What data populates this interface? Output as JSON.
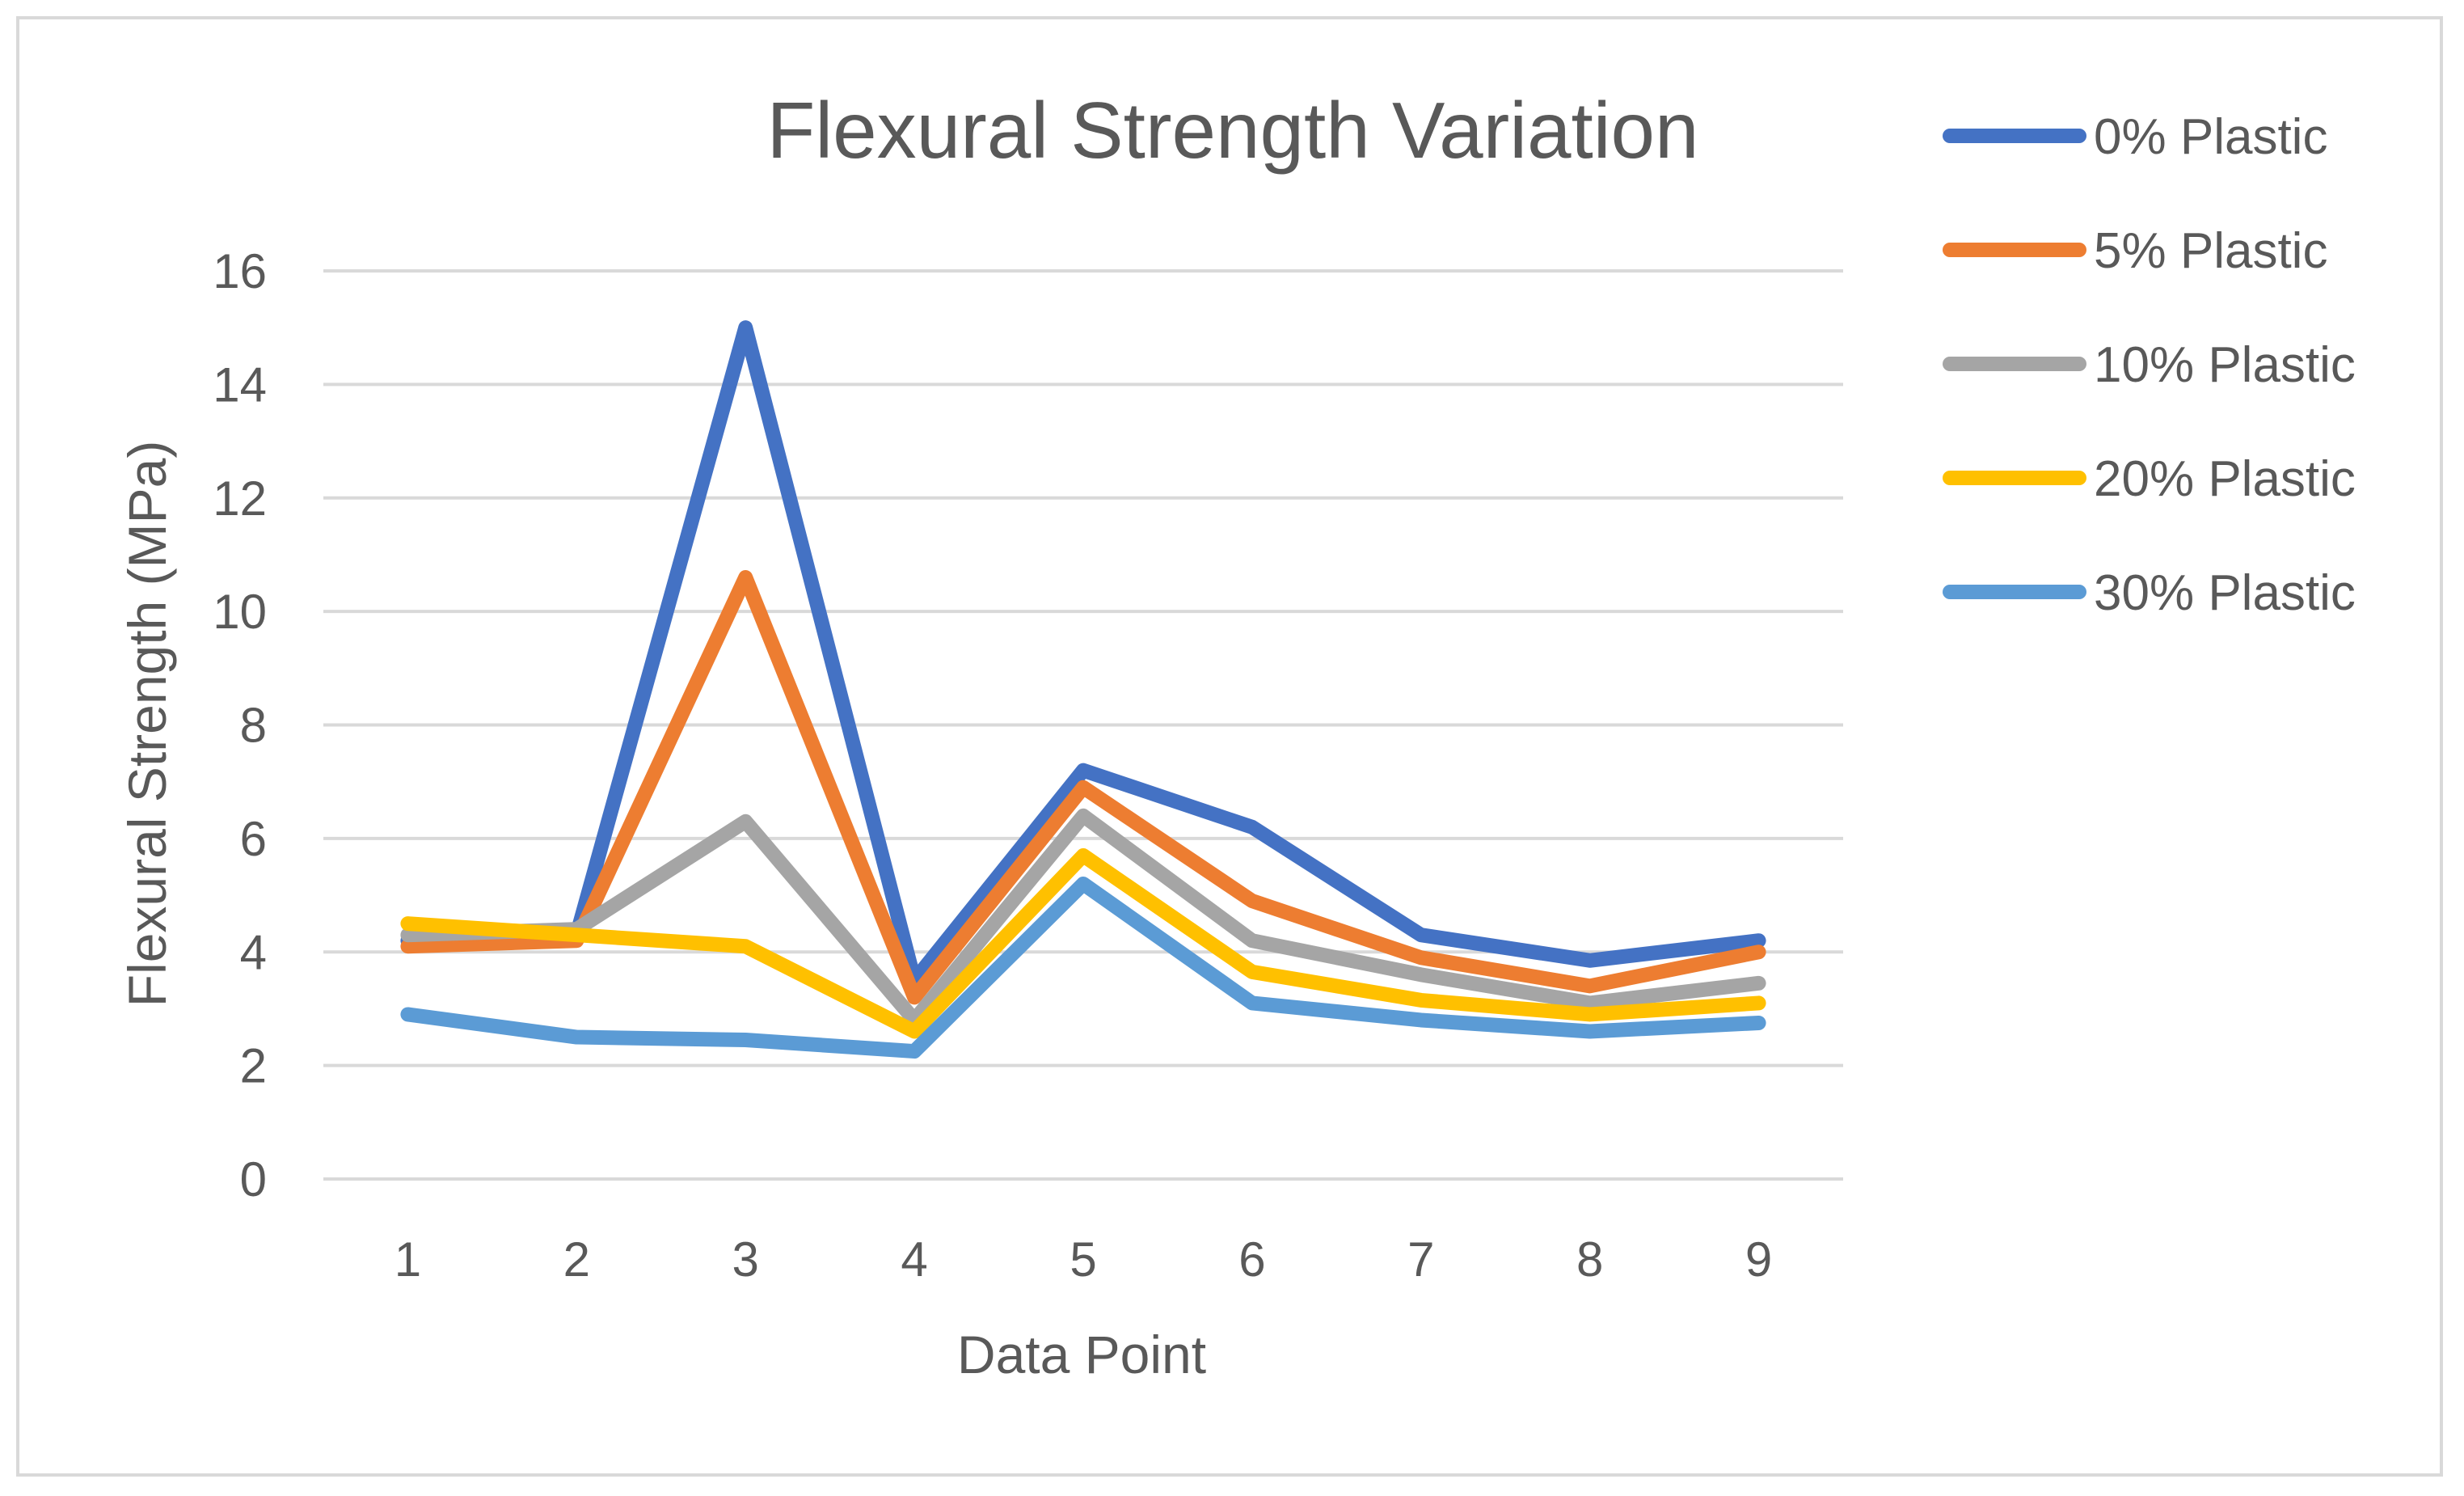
{
  "chart_data": {
    "type": "line",
    "title": "Flexural Strength Variation",
    "xlabel": "Data Point",
    "ylabel": "Flexural Strength (MPa)",
    "categories": [
      "1",
      "2",
      "3",
      "4",
      "5",
      "6",
      "7",
      "8",
      "9"
    ],
    "yticks": [
      "0",
      "2",
      "4",
      "6",
      "8",
      "10",
      "12",
      "14",
      "16"
    ],
    "ylim": [
      0,
      16
    ],
    "grid": true,
    "legend_position": "right",
    "series": [
      {
        "name": "0% Plastic",
        "color": "#4472C4",
        "values": [
          4.2,
          4.3,
          15.0,
          3.5,
          7.2,
          6.2,
          4.3,
          3.85,
          4.2
        ]
      },
      {
        "name": "5% Plastic",
        "color": "#ED7D31",
        "values": [
          4.1,
          4.2,
          10.6,
          3.2,
          6.9,
          4.9,
          3.9,
          3.4,
          4.0
        ]
      },
      {
        "name": "10% Plastic",
        "color": "#A5A5A5",
        "values": [
          4.3,
          4.4,
          6.3,
          2.8,
          6.4,
          4.2,
          3.6,
          3.1,
          3.45
        ]
      },
      {
        "name": "20% Plastic",
        "color": "#FFC000",
        "values": [
          4.5,
          4.3,
          4.1,
          2.6,
          5.7,
          3.65,
          3.15,
          2.9,
          3.1
        ]
      },
      {
        "name": "30% Plastic",
        "color": "#5B9BD5",
        "values": [
          2.9,
          2.5,
          2.45,
          2.25,
          5.2,
          3.1,
          2.8,
          2.6,
          2.75
        ]
      }
    ]
  }
}
